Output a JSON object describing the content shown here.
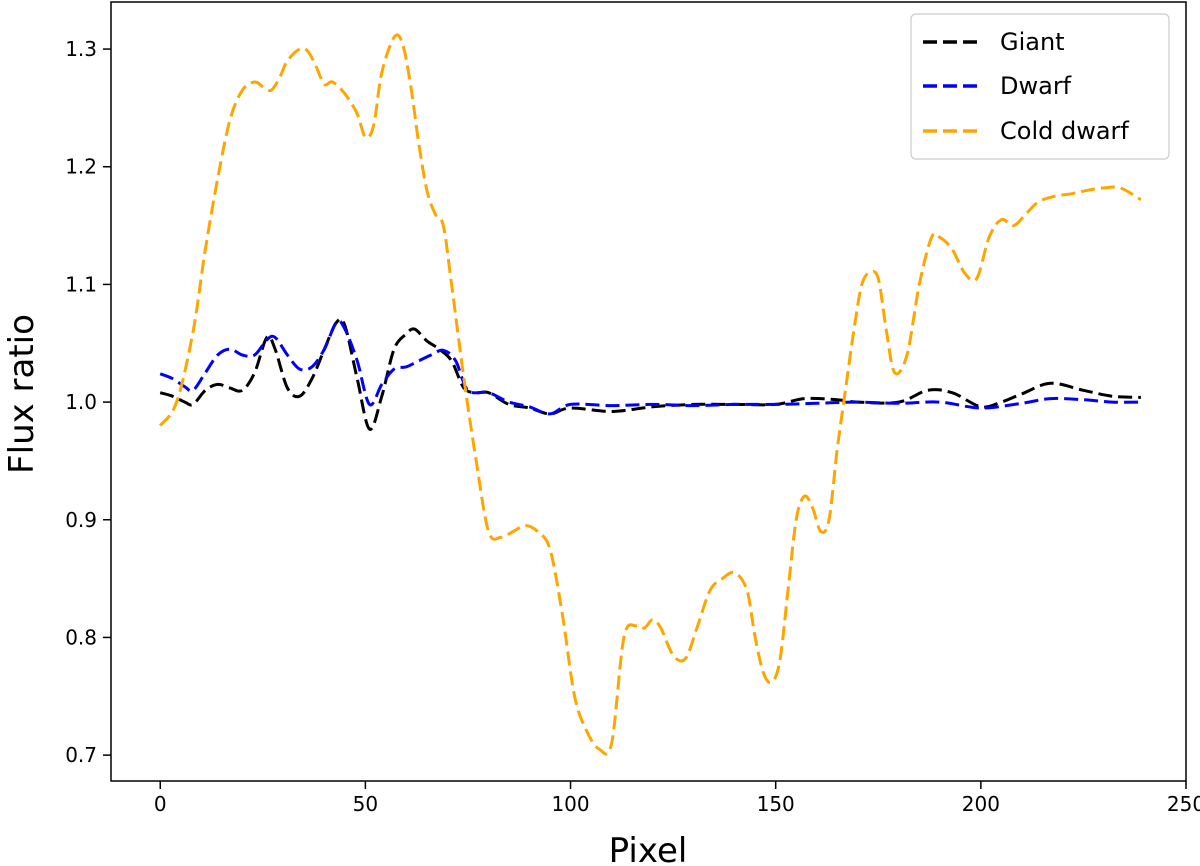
{
  "chart_data": {
    "type": "line",
    "xlabel": "Pixel",
    "ylabel": "Flux ratio",
    "xlim": [
      -12,
      250
    ],
    "ylim": [
      0.678,
      1.34
    ],
    "xticks": [
      0,
      50,
      100,
      150,
      200,
      250
    ],
    "yticks": [
      0.7,
      0.8,
      0.9,
      1.0,
      1.1,
      1.2,
      1.3
    ],
    "grid": false,
    "legend_position": "top-right",
    "series": [
      {
        "name": "Giant",
        "color": "#000000",
        "line_style": "dashed",
        "x": [
          0,
          3,
          6,
          8,
          11,
          14,
          17,
          20,
          23,
          26,
          28,
          31,
          34,
          37,
          40,
          43,
          45,
          48,
          51,
          54,
          57,
          60,
          62,
          65,
          68,
          71,
          74,
          77,
          80,
          85,
          90,
          95,
          100,
          110,
          120,
          130,
          140,
          150,
          157,
          165,
          170,
          180,
          187,
          193,
          200,
          205,
          210,
          217,
          225,
          232,
          239
        ],
        "values": [
          1.008,
          1.005,
          1.0,
          0.998,
          1.01,
          1.015,
          1.012,
          1.01,
          1.025,
          1.055,
          1.045,
          1.012,
          1.005,
          1.02,
          1.045,
          1.068,
          1.065,
          1.02,
          0.977,
          1.005,
          1.045,
          1.058,
          1.062,
          1.052,
          1.045,
          1.035,
          1.012,
          1.008,
          1.008,
          0.998,
          0.995,
          0.99,
          0.995,
          0.992,
          0.996,
          0.998,
          0.998,
          0.998,
          1.003,
          1.002,
          1.0,
          1.0,
          1.01,
          1.008,
          0.996,
          1.0,
          1.007,
          1.016,
          1.01,
          1.005,
          1.004
        ]
      },
      {
        "name": "Dwarf",
        "color": "#0000ff",
        "line_style": "dashed",
        "x": [
          0,
          3,
          6,
          8,
          11,
          14,
          17,
          20,
          23,
          26,
          28,
          31,
          34,
          37,
          40,
          43,
          45,
          48,
          51,
          54,
          57,
          60,
          63,
          66,
          69,
          72,
          75,
          80,
          85,
          90,
          95,
          100,
          110,
          120,
          130,
          140,
          150,
          160,
          170,
          180,
          190,
          200,
          210,
          217,
          225,
          232,
          239
        ],
        "values": [
          1.024,
          1.02,
          1.013,
          1.01,
          1.025,
          1.04,
          1.045,
          1.04,
          1.04,
          1.053,
          1.055,
          1.04,
          1.028,
          1.03,
          1.045,
          1.068,
          1.062,
          1.035,
          0.998,
          1.015,
          1.028,
          1.03,
          1.035,
          1.04,
          1.044,
          1.035,
          1.01,
          1.008,
          1.0,
          0.996,
          0.99,
          0.998,
          0.997,
          0.998,
          0.997,
          0.998,
          0.998,
          0.999,
          1.0,
          0.999,
          1.0,
          0.995,
          0.999,
          1.003,
          1.002,
          1.0,
          1.0
        ]
      },
      {
        "name": "Cold dwarf",
        "color": "#ffa500",
        "line_style": "dashed",
        "x": [
          0,
          4,
          8,
          11,
          14,
          17,
          20,
          23,
          25,
          27,
          29,
          31,
          34,
          36,
          38,
          40,
          42,
          45,
          48,
          50,
          52,
          54,
          57,
          59,
          61,
          63,
          65,
          67,
          69,
          71,
          74,
          77,
          80,
          83,
          86,
          89,
          92,
          95,
          98,
          101,
          104,
          107,
          110,
          113,
          116,
          118,
          120,
          122,
          125,
          128,
          131,
          134,
          137,
          140,
          143,
          145,
          147,
          149,
          151,
          153,
          155,
          157,
          159,
          161,
          163,
          165,
          167,
          169,
          171,
          173,
          175,
          177,
          179,
          182,
          185,
          188,
          190,
          193,
          196,
          199,
          202,
          205,
          208,
          211,
          214,
          218,
          222,
          226,
          230,
          234,
          239
        ],
        "values": [
          0.98,
          1.0,
          1.06,
          1.13,
          1.19,
          1.24,
          1.265,
          1.272,
          1.268,
          1.265,
          1.275,
          1.29,
          1.3,
          1.298,
          1.285,
          1.27,
          1.272,
          1.262,
          1.245,
          1.225,
          1.235,
          1.28,
          1.31,
          1.305,
          1.27,
          1.22,
          1.18,
          1.16,
          1.15,
          1.1,
          1.02,
          0.95,
          0.89,
          0.885,
          0.89,
          0.895,
          0.89,
          0.875,
          0.82,
          0.75,
          0.72,
          0.705,
          0.71,
          0.8,
          0.81,
          0.808,
          0.815,
          0.808,
          0.785,
          0.782,
          0.81,
          0.84,
          0.85,
          0.855,
          0.84,
          0.8,
          0.77,
          0.762,
          0.78,
          0.84,
          0.9,
          0.92,
          0.91,
          0.89,
          0.9,
          0.96,
          1.01,
          1.06,
          1.1,
          1.11,
          1.105,
          1.06,
          1.025,
          1.04,
          1.1,
          1.14,
          1.14,
          1.13,
          1.11,
          1.105,
          1.14,
          1.155,
          1.15,
          1.16,
          1.17,
          1.175,
          1.177,
          1.18,
          1.182,
          1.182,
          1.172
        ]
      }
    ]
  }
}
